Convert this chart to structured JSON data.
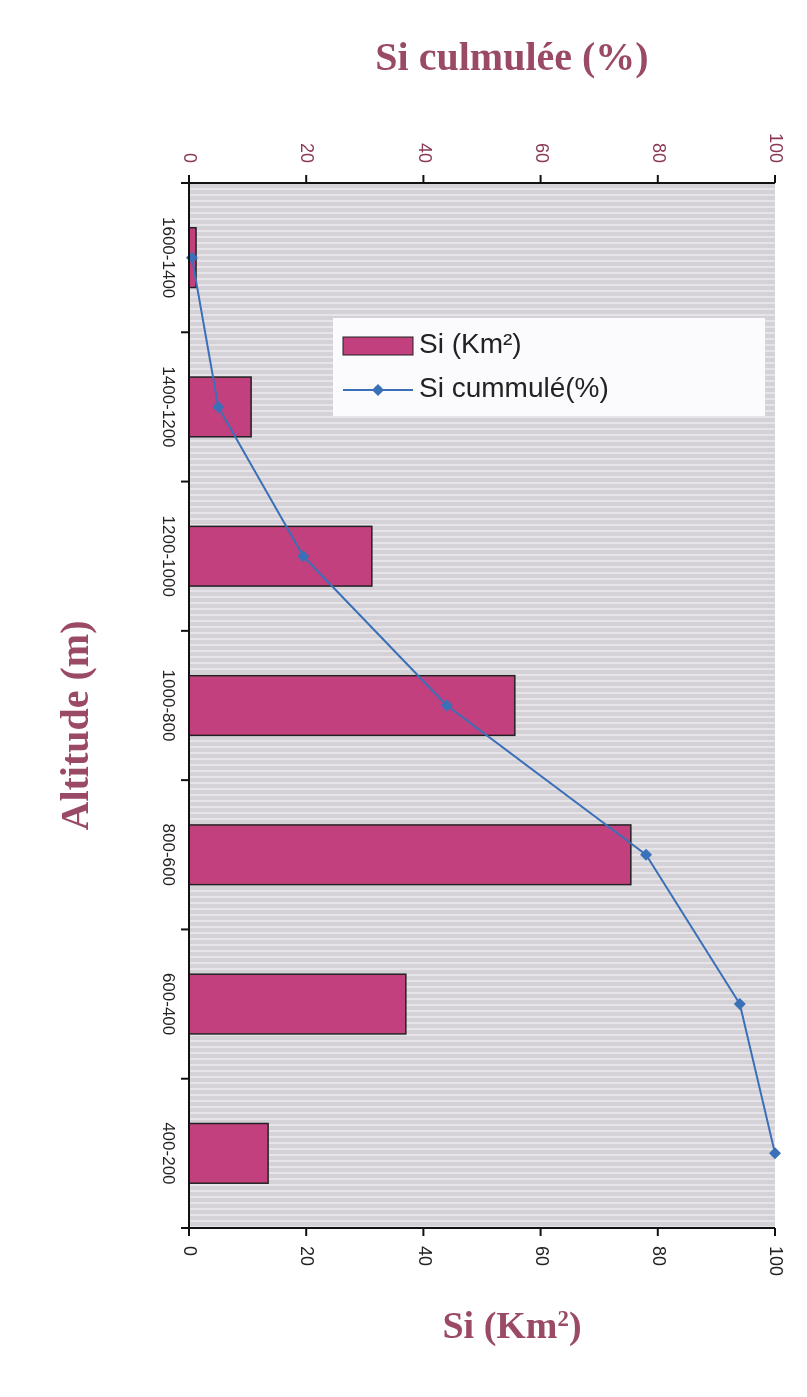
{
  "chart_data": {
    "type": "bar",
    "orientation": "horizontal",
    "title": "Si culmulée (%)",
    "xlabel": "Si (Km$^{2}$)",
    "ylabel": "Altitude (m)",
    "categories": [
      "1600-1400",
      "1400-1200",
      "1200-1000",
      "1000-800",
      "800-600",
      "600-400",
      "400-200"
    ],
    "series": [
      {
        "name": "Si (Km²)",
        "color": "#c2407e",
        "values": [
          1.2,
          10.6,
          31.2,
          55.6,
          75.4,
          37,
          13.5
        ]
      },
      {
        "name": "Si cummulé(%)",
        "type": "line",
        "axis": "x2",
        "color": "#3a70b8",
        "marker": "diamond",
        "values": [
          0.5,
          5,
          19.5,
          44,
          78,
          94,
          100
        ]
      }
    ],
    "xlim": [
      0,
      100
    ],
    "xticks": [
      0,
      20,
      40,
      60,
      80,
      100
    ],
    "x2lim": [
      0,
      100
    ],
    "x2ticks": [
      0,
      20,
      40,
      60,
      80,
      100
    ],
    "legend": "top right",
    "grid": false
  }
}
